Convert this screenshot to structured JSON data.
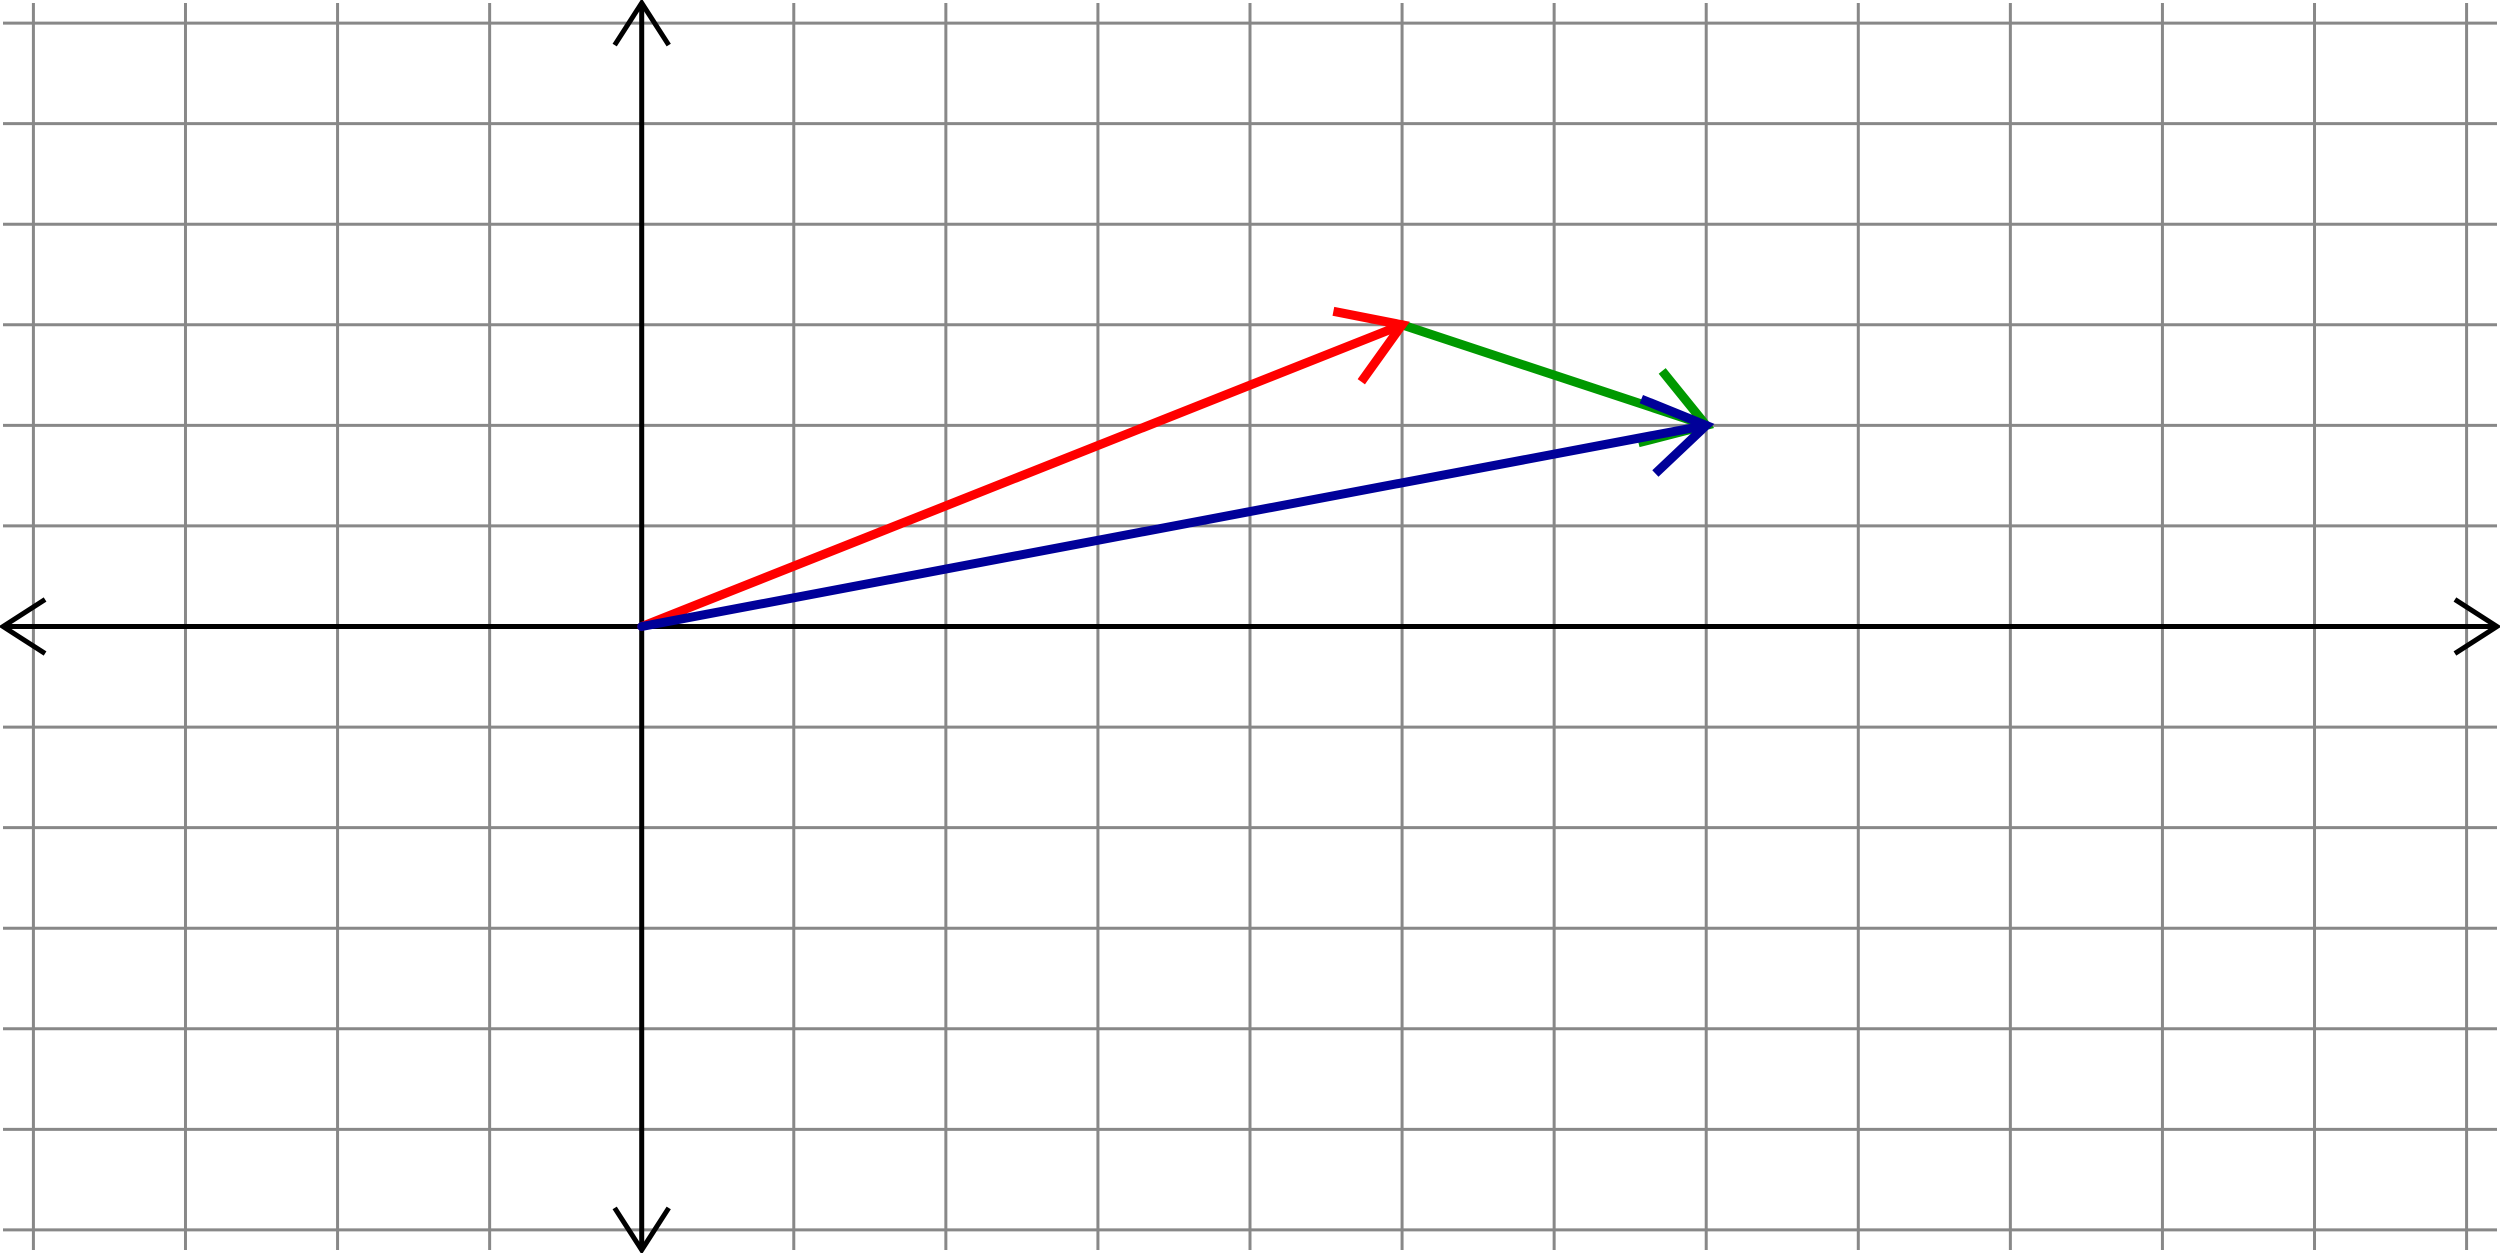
{
  "grid": {
    "xlim": [
      -4.2,
      12.2
    ],
    "ylim": [
      -6.2,
      6.2
    ],
    "xticks": [
      -4,
      -3,
      -2,
      -1,
      0,
      1,
      2,
      3,
      4,
      5,
      6,
      7,
      8,
      9,
      10,
      11,
      12
    ],
    "yticks": [
      -6,
      -5,
      -4,
      -3,
      -2,
      -1,
      0,
      1,
      2,
      3,
      4,
      5,
      6
    ]
  },
  "vectors": [
    {
      "color": "#009900",
      "from": [
        5,
        3
      ],
      "to": [
        7,
        2
      ]
    },
    {
      "color": "#ff0000",
      "from": [
        0,
        0
      ],
      "to": [
        5,
        3
      ]
    },
    {
      "color": "#000099",
      "from": [
        0,
        0
      ],
      "to": [
        7,
        2
      ]
    }
  ]
}
